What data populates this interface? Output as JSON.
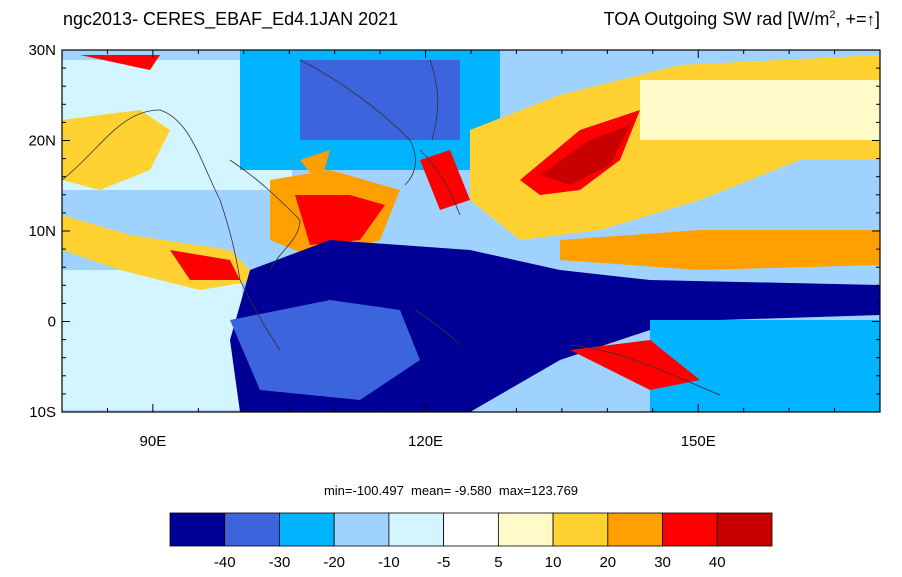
{
  "header": {
    "left_title": "ngc2013- CERES_EBAF_Ed4.1JAN 2021",
    "right_title_prefix": "TOA Outgoing SW rad [W/m",
    "right_title_sup": "2",
    "right_title_suffix": ", +=",
    "right_title_arrow": "↑",
    "right_title_close": "]"
  },
  "map": {
    "lon_range": [
      80,
      170
    ],
    "lat_range": [
      -10,
      30
    ],
    "lon_ticks": [
      {
        "value": 90,
        "label": "90E"
      },
      {
        "value": 120,
        "label": "120E"
      },
      {
        "value": 150,
        "label": "150E"
      }
    ],
    "lat_ticks": [
      {
        "value": 30,
        "label": "30N"
      },
      {
        "value": 20,
        "label": "20N"
      },
      {
        "value": 10,
        "label": "10N"
      },
      {
        "value": 0,
        "label": "0"
      },
      {
        "value": -10,
        "label": "10S"
      }
    ]
  },
  "stats": {
    "min_label": "min=",
    "min": "-100.497",
    "mean_label": "mean=",
    "mean": " -9.580",
    "max_label": "max=",
    "max": "123.769"
  },
  "colorbar": {
    "colors": [
      "#000096",
      "#3c64dc",
      "#00b4ff",
      "#a0d2ff",
      "#d2f5ff",
      "#ffffff",
      "#fffac8",
      "#ffd232",
      "#ffa000",
      "#ff0000",
      "#c80000"
    ],
    "labels": [
      "-40",
      "-30",
      "-20",
      "-10",
      "-5",
      "5",
      "10",
      "20",
      "30",
      "40"
    ]
  }
}
